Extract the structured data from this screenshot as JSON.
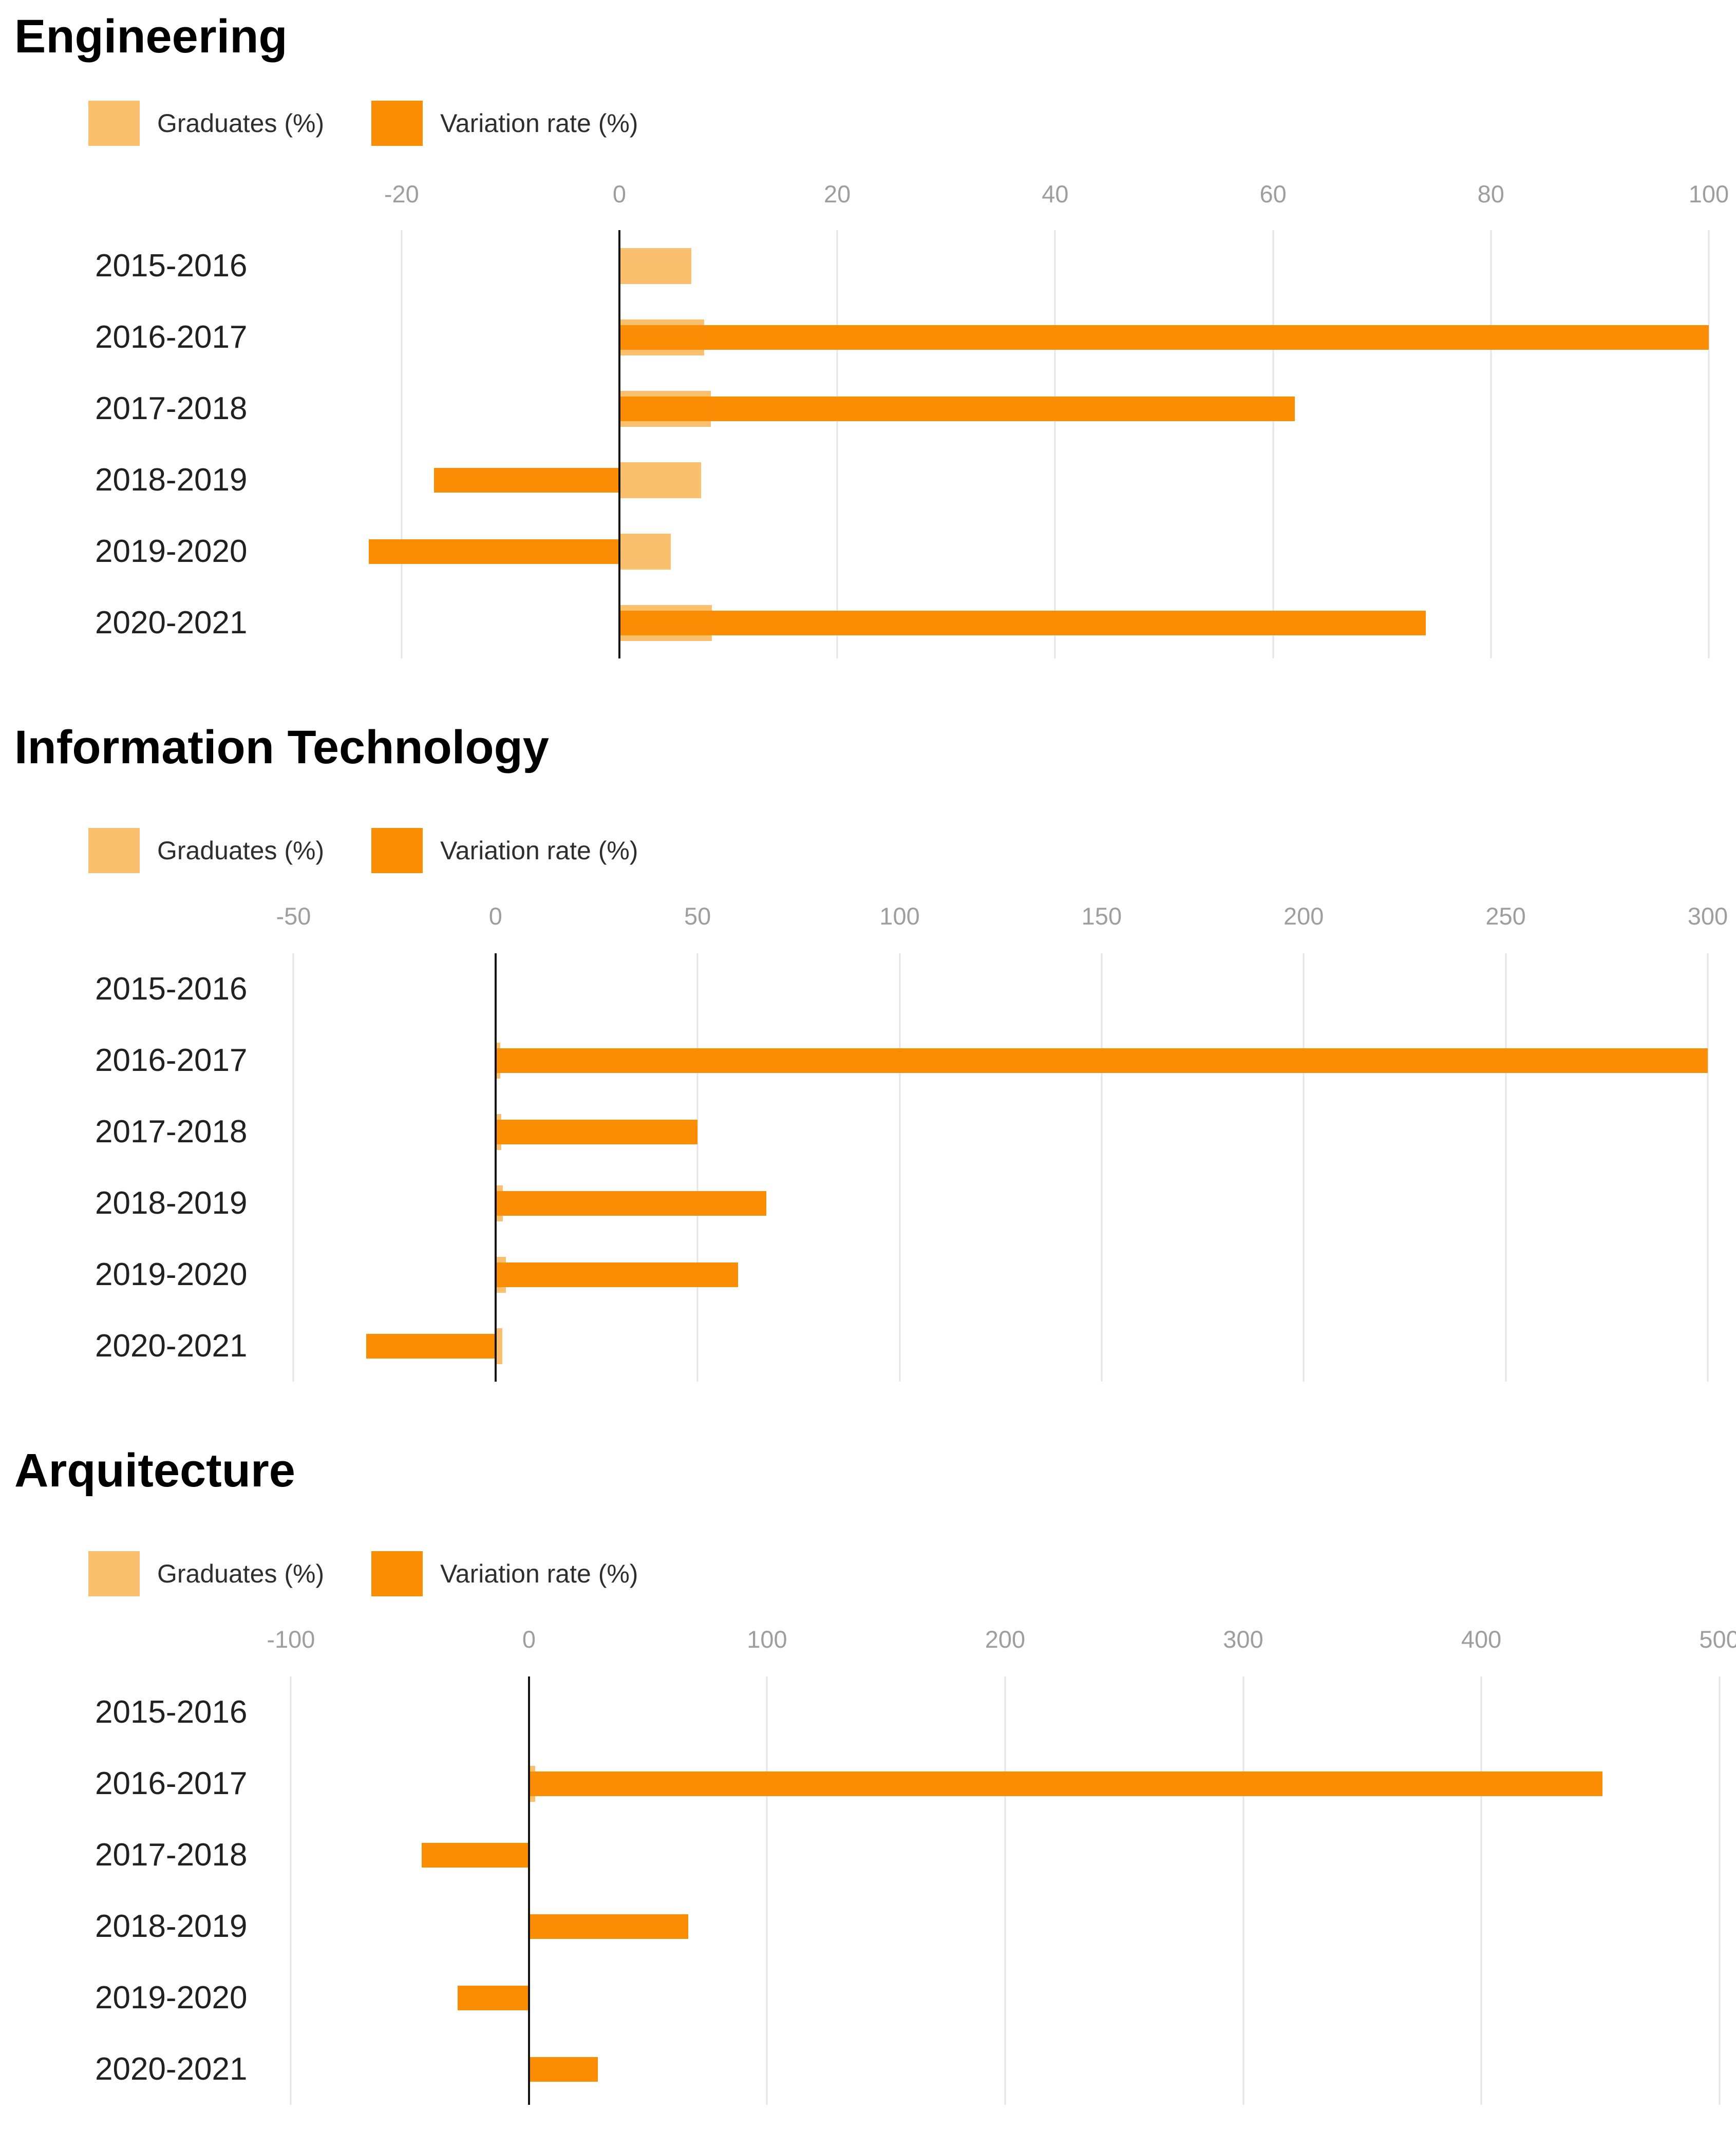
{
  "legend": {
    "graduates_label": "Graduates (%)",
    "variation_label": "Variation rate (%)"
  },
  "colors": {
    "graduates": "#fac06e",
    "variation": "#fb8d05",
    "gridline": "#e4e4e4",
    "zero_line": "#141414",
    "tick_text": "#9e9e9e",
    "label_text": "#212121",
    "title_text": "#000000"
  },
  "chart_data": [
    {
      "type": "bar",
      "orientation": "horizontal",
      "title": "Engineering",
      "categories": [
        "2015-2016",
        "2016-2017",
        "2017-2018",
        "2018-2019",
        "2019-2020",
        "2020-2021"
      ],
      "series": [
        {
          "name": "Graduates (%)",
          "values": [
            6.6,
            7.8,
            8.4,
            7.5,
            4.7,
            8.5
          ]
        },
        {
          "name": "Variation rate (%)",
          "values": [
            null,
            100,
            62,
            -17,
            -23,
            74
          ]
        }
      ],
      "x_ticks": [
        -20,
        0,
        20,
        40,
        60,
        80,
        100
      ],
      "xlim": [
        -31.4,
        102.5
      ],
      "grid": true,
      "legend_position": "top"
    },
    {
      "type": "bar",
      "orientation": "horizontal",
      "title": "Information Technology",
      "categories": [
        "2015-2016",
        "2016-2017",
        "2017-2018",
        "2018-2019",
        "2019-2020",
        "2020-2021"
      ],
      "series": [
        {
          "name": "Graduates (%)",
          "values": [
            0,
            1.2,
            1.4,
            1.8,
            2.6,
            1.7
          ]
        },
        {
          "name": "Variation rate (%)",
          "values": [
            null,
            300,
            50,
            67,
            60,
            -32
          ]
        }
      ],
      "x_ticks": [
        -50,
        0,
        50,
        100,
        150,
        200,
        250,
        300
      ],
      "xlim": [
        -54,
        307
      ],
      "grid": true,
      "legend_position": "top"
    },
    {
      "type": "bar",
      "orientation": "horizontal",
      "title": "Arquitecture",
      "categories": [
        "2015-2016",
        "2016-2017",
        "2017-2018",
        "2018-2019",
        "2019-2020",
        "2020-2021"
      ],
      "series": [
        {
          "name": "Graduates (%)",
          "values": [
            0,
            2.6,
            0.4,
            0.5,
            0.5,
            0.4
          ]
        },
        {
          "name": "Variation rate (%)",
          "values": [
            null,
            451,
            -45,
            67,
            -30,
            29
          ]
        }
      ],
      "x_ticks": [
        -100,
        0,
        100,
        200,
        300,
        400,
        500
      ],
      "xlim": [
        -105.7,
        507
      ],
      "grid": true,
      "legend_position": "top"
    }
  ]
}
